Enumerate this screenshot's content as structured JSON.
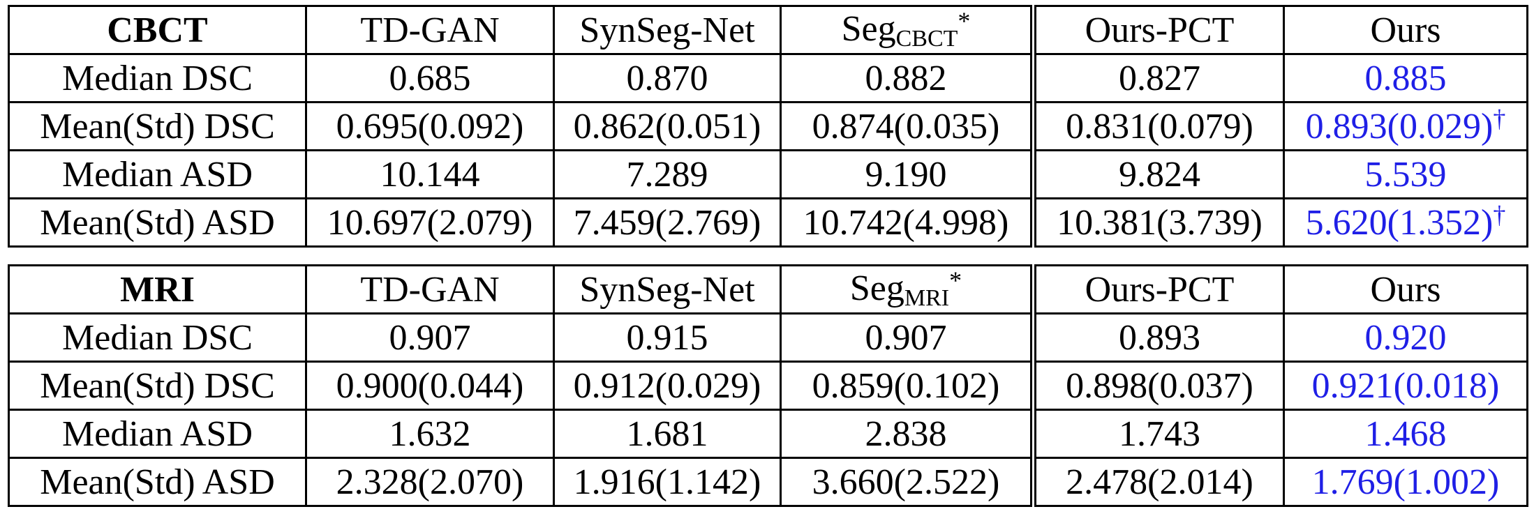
{
  "highlight_color": "#1f1fe6",
  "tables": [
    {
      "header": [
        {
          "text": "CBCT"
        },
        {
          "text": "TD-GAN"
        },
        {
          "text": "SynSeg-Net"
        },
        {
          "text": "Seg",
          "sub": "CBCT",
          "sup": "*"
        },
        {
          "text": "Ours-PCT"
        },
        {
          "text": "Ours"
        }
      ],
      "rows": [
        [
          "Median DSC",
          "0.685",
          "0.870",
          "0.882",
          "0.827",
          "0.885"
        ],
        [
          "Mean(Std) DSC",
          "0.695(0.092)",
          "0.862(0.051)",
          "0.874(0.035)",
          "0.831(0.079)",
          {
            "text": "0.893(0.029)",
            "sup": "†"
          }
        ],
        [
          "Median ASD",
          "10.144",
          "7.289",
          "9.190",
          "9.824",
          "5.539"
        ],
        [
          "Mean(Std) ASD",
          "10.697(2.079)",
          "7.459(2.769)",
          "10.742(4.998)",
          "10.381(3.739)",
          {
            "text": "5.620(1.352)",
            "sup": "†"
          }
        ]
      ]
    },
    {
      "header": [
        {
          "text": "MRI"
        },
        {
          "text": "TD-GAN"
        },
        {
          "text": "SynSeg-Net"
        },
        {
          "text": "Seg",
          "sub": "MRI",
          "sup": "*"
        },
        {
          "text": "Ours-PCT"
        },
        {
          "text": "Ours"
        }
      ],
      "rows": [
        [
          "Median DSC",
          "0.907",
          "0.915",
          "0.907",
          "0.893",
          "0.920"
        ],
        [
          "Mean(Std) DSC",
          "0.900(0.044)",
          "0.912(0.029)",
          "0.859(0.102)",
          "0.898(0.037)",
          "0.921(0.018)"
        ],
        [
          "Median ASD",
          "1.632",
          "1.681",
          "2.838",
          "1.743",
          "1.468"
        ],
        [
          "Mean(Std) ASD",
          "2.328(2.070)",
          "1.916(1.142)",
          "3.660(2.522)",
          "2.478(2.014)",
          "1.769(1.002)"
        ]
      ]
    }
  ]
}
